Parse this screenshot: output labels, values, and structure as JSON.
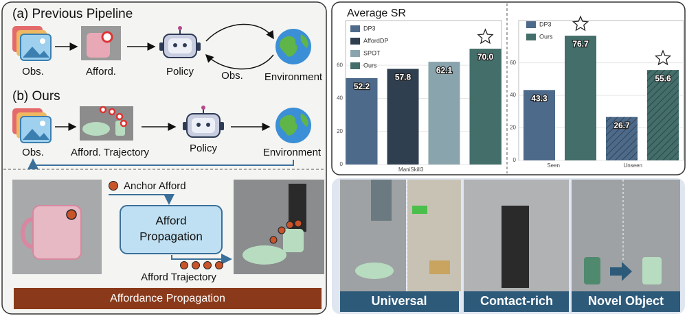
{
  "diagram": {
    "previous": {
      "title": "(a) Previous Pipeline",
      "labels": [
        "Obs.",
        "Afford.",
        "Policy",
        "Environment"
      ],
      "loop_label": "Obs."
    },
    "ours": {
      "title": "(b) Ours",
      "labels": [
        "Obs.",
        "Afford. Trajectory",
        "Policy",
        "Environment"
      ]
    },
    "propagation": {
      "input": "Anchor Afford",
      "box": [
        "Afford",
        "Propagation"
      ],
      "output": "Afford Trajectory",
      "banner": "Affordance Propagation"
    }
  },
  "chart_data": [
    {
      "type": "bar",
      "title": "Average SR",
      "categories": [
        "ManiSkill3"
      ],
      "series": [
        {
          "name": "DP3",
          "color": "#4e6a8a",
          "values": [
            52.2
          ]
        },
        {
          "name": "AffordDP",
          "color": "#2f3f50",
          "values": [
            57.8
          ]
        },
        {
          "name": "SPOT",
          "color": "#8aa4ad",
          "values": [
            62.1
          ]
        },
        {
          "name": "Ours",
          "color": "#436e6a",
          "values": [
            70.0
          ],
          "value_labels": [
            "70.0"
          ]
        }
      ],
      "ylim": [
        0,
        87
      ],
      "yticks": [
        0,
        20,
        40,
        60
      ],
      "legend": "upper left"
    },
    {
      "type": "bar",
      "categories": [
        "Seen",
        "Unseen"
      ],
      "series": [
        {
          "name": "DP3",
          "color": "#4e6a8a",
          "values": [
            43.3,
            26.7
          ]
        },
        {
          "name": "Ours",
          "color": "#436e6a",
          "values": [
            76.7,
            55.6
          ]
        }
      ],
      "hatched": [
        false,
        true
      ],
      "ylim": [
        0,
        86
      ],
      "yticks": [
        0,
        20,
        40,
        60
      ],
      "legend": "upper left"
    }
  ],
  "demos": {
    "labels": [
      "Universal",
      "Contact-rich",
      "Novel Object"
    ]
  }
}
